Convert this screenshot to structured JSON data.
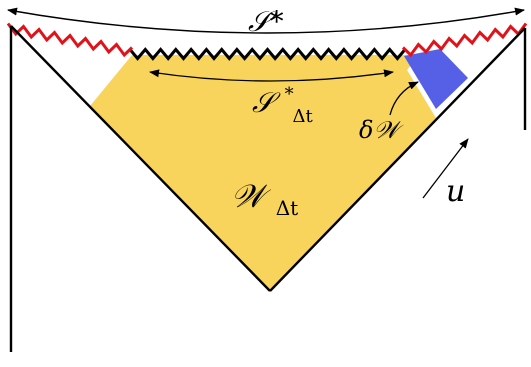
{
  "labels": {
    "S_star": "𝒮*",
    "S_star_dt_main": "𝒮",
    "S_star_dt_sup": "*",
    "S_star_dt_sub": "Δt",
    "delta_W": "δ𝒲",
    "W_dt_main": "𝒲",
    "W_dt_sub": "Δt",
    "u": "u"
  },
  "colors": {
    "wedge_fill": "#f9d45c",
    "strip_fill": "#5560e6",
    "red_zigzag": "#e0131b",
    "black_zigzag": "#000000",
    "outline": "#000000"
  }
}
